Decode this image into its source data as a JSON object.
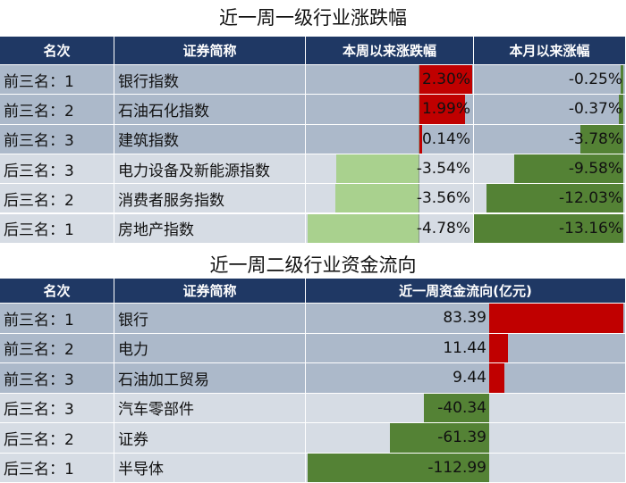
{
  "table1": {
    "title": "近一周一级行业涨跌幅",
    "headers": [
      "名次",
      "证券简称",
      "本周以来涨跌幅",
      "本月以来涨幅"
    ],
    "rows": [
      {
        "rank": "前三名：1",
        "name": "银行指数",
        "week": 2.3,
        "week_text": "2.30%",
        "month": -0.25,
        "month_text": "-0.25%"
      },
      {
        "rank": "前三名：2",
        "name": "石油石化指数",
        "week": 1.99,
        "week_text": "1.99%",
        "month": -0.37,
        "month_text": "-0.37%"
      },
      {
        "rank": "前三名：3",
        "name": "建筑指数",
        "week": 0.14,
        "week_text": "0.14%",
        "month": -3.78,
        "month_text": "-3.78%"
      },
      {
        "rank": "后三名：3",
        "name": "电力设备及新能源指数",
        "week": -3.54,
        "week_text": "-3.54%",
        "month": -9.58,
        "month_text": "-9.58%"
      },
      {
        "rank": "后三名：2",
        "name": "消费者服务指数",
        "week": -3.56,
        "week_text": "-3.56%",
        "month": -12.03,
        "month_text": "-12.03%"
      },
      {
        "rank": "后三名：1",
        "name": "房地产指数",
        "week": -4.78,
        "week_text": "-4.78%",
        "month": -13.16,
        "month_text": "-13.16%"
      }
    ]
  },
  "table2": {
    "title": "近一周二级行业资金流向",
    "headers": [
      "名次",
      "证券简称",
      "近一周资金流向(亿元)"
    ],
    "rows": [
      {
        "rank": "前三名：1",
        "name": "银行",
        "flow": 83.39,
        "flow_text": "83.39"
      },
      {
        "rank": "前三名：2",
        "name": "电力",
        "flow": 11.44,
        "flow_text": "11.44"
      },
      {
        "rank": "前三名：3",
        "name": "石油加工贸易",
        "flow": 9.44,
        "flow_text": "9.44"
      },
      {
        "rank": "后三名：3",
        "name": "汽车零部件",
        "flow": -40.34,
        "flow_text": "-40.34"
      },
      {
        "rank": "后三名：2",
        "name": "证券",
        "flow": -61.39,
        "flow_text": "-61.39"
      },
      {
        "rank": "后三名：1",
        "name": "半导体",
        "flow": -112.99,
        "flow_text": "-112.99"
      }
    ]
  },
  "colors": {
    "header_bg": "#1f3864",
    "row_dark": "#acb9ca",
    "row_light": "#d6dce4",
    "bar_positive": "#c00000",
    "bar_negative_dark": "#548235",
    "bar_negative_light": "#a9d18e"
  }
}
